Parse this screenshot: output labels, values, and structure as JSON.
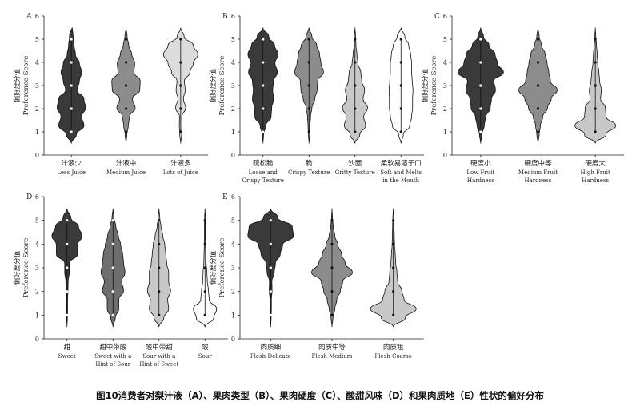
{
  "figure": {
    "caption": "图10消费者对梨汁液（A）、果肉类型（B）、果肉硬度（C）、酸甜风味（D）和果肉质地（E）性状的偏好分布"
  },
  "chart_data": [
    {
      "type": "violin",
      "panel_label": "A",
      "ylabel_cn": "偏好度分值",
      "ylabel_en": "Preference Score",
      "ylim": [
        0,
        6
      ],
      "yticks": [
        0,
        1,
        2,
        3,
        4,
        5,
        6
      ],
      "categories": [
        {
          "cn": "汁液少",
          "en": [
            "Less Juice"
          ],
          "color": "#3a3a3a",
          "widths": [
            0,
            0.22,
            0.55,
            0.45,
            0.62,
            0.55,
            0.25,
            0.35,
            0.45,
            0.35,
            0.18,
            0.12,
            0.08,
            0.04
          ],
          "points": [
            1,
            2,
            3,
            4,
            5
          ]
        },
        {
          "cn": "汁液中",
          "en": [
            "Medium Juice"
          ],
          "color": "#8c8c8c",
          "widths": [
            0,
            0.04,
            0.1,
            0.16,
            0.4,
            0.28,
            0.6,
            0.62,
            0.35,
            0.38,
            0.25,
            0.12,
            0.05,
            0
          ],
          "points": [
            1,
            2,
            3,
            4,
            5
          ]
        },
        {
          "cn": "汁液多",
          "en": [
            "Lots of Juice"
          ],
          "color": "#dcdcdc",
          "widths": [
            0,
            0.04,
            0.06,
            0.05,
            0.22,
            0.12,
            0.2,
            0.16,
            0.4,
            0.55,
            0.75,
            0.55,
            0.15,
            0
          ],
          "points": [
            1,
            2,
            3,
            4,
            5
          ]
        }
      ]
    },
    {
      "type": "violin",
      "panel_label": "B",
      "ylabel_cn": "偏好度分值",
      "ylabel_en": "Preference Score",
      "ylim": [
        0,
        6
      ],
      "yticks": [
        0,
        1,
        2,
        3,
        4,
        5,
        6
      ],
      "categories": [
        {
          "cn": "疏松脆",
          "en": [
            "Loose and",
            "Crispy Texture"
          ],
          "color": "#3a3a3a",
          "widths": [
            0,
            0.03,
            0.15,
            0.42,
            0.45,
            0.55,
            0.5,
            0.55,
            0.75,
            0.62,
            0.78,
            0.6,
            0.3,
            0
          ],
          "points": [
            1,
            2,
            3,
            4,
            5
          ]
        },
        {
          "cn": "脆",
          "en": [
            "Crispy Texture"
          ],
          "color": "#8c8c8c",
          "widths": [
            0,
            0.03,
            0.05,
            0.08,
            0.15,
            0.3,
            0.42,
            0.45,
            0.75,
            0.62,
            0.55,
            0.4,
            0.15,
            0
          ],
          "points": [
            1,
            2,
            3,
            4,
            5
          ]
        },
        {
          "cn": "沙面",
          "en": [
            "Gritty Texture"
          ],
          "color": "#c8c8c8",
          "widths": [
            0,
            0.25,
            0.55,
            0.45,
            0.65,
            0.42,
            0.5,
            0.35,
            0.3,
            0.15,
            0.1,
            0.05,
            0.03,
            0
          ],
          "points": [
            1,
            2,
            3,
            4,
            5
          ]
        },
        {
          "cn": "柔软易溶于口",
          "en": [
            "Soft and Melts",
            "in the Mouth"
          ],
          "color": "#ffffff",
          "widths": [
            0,
            0.12,
            0.45,
            0.55,
            0.6,
            0.6,
            0.62,
            0.58,
            0.55,
            0.55,
            0.5,
            0.4,
            0.2,
            0
          ],
          "points": [
            1,
            2,
            3,
            4,
            5
          ]
        }
      ]
    },
    {
      "type": "violin",
      "panel_label": "C",
      "ylabel_cn": "偏好度分值",
      "ylabel_en": "Preference Score",
      "ylim": [
        0,
        6
      ],
      "yticks": [
        0,
        1,
        2,
        3,
        4,
        5,
        6
      ],
      "categories": [
        {
          "cn": "硬度小",
          "en": [
            "Low Fruit",
            "Hardness"
          ],
          "color": "#3a3a3a",
          "widths": [
            0,
            0.05,
            0.15,
            0.22,
            0.4,
            0.45,
            0.62,
            0.55,
            0.95,
            0.7,
            0.6,
            0.35,
            0.12,
            0
          ],
          "points": [
            1,
            2,
            3,
            4,
            5
          ]
        },
        {
          "cn": "硬度中等",
          "en": [
            "Medium Fruit",
            "Hardness"
          ],
          "color": "#8c8c8c",
          "widths": [
            0,
            0.05,
            0.1,
            0.2,
            0.4,
            0.55,
            0.8,
            0.52,
            0.45,
            0.38,
            0.3,
            0.15,
            0.05,
            0
          ],
          "points": [
            1,
            2,
            3,
            4,
            5
          ]
        },
        {
          "cn": "硬度大",
          "en": [
            "High Fruit",
            "Hardness"
          ],
          "color": "#c8c8c8",
          "widths": [
            0,
            0.45,
            0.85,
            0.45,
            0.42,
            0.22,
            0.25,
            0.18,
            0.15,
            0.1,
            0.08,
            0.05,
            0.02,
            0
          ],
          "points": [
            1,
            2,
            3,
            4,
            5
          ]
        }
      ]
    },
    {
      "type": "violin",
      "panel_label": "D",
      "ylabel_cn": "偏好度分值",
      "ylabel_en": "Preference Score",
      "ylim": [
        0,
        6
      ],
      "yticks": [
        0,
        1,
        2,
        3,
        4,
        5,
        6
      ],
      "categories": [
        {
          "cn": "甜",
          "en": [
            "Sweet"
          ],
          "color": "#3a3a3a",
          "widths": [
            0,
            0.02,
            0.03,
            0.03,
            0.05,
            0.06,
            0.12,
            0.12,
            0.55,
            0.55,
            0.78,
            0.6,
            0.2,
            0
          ],
          "points": [
            1,
            2,
            3,
            4,
            5
          ]
        },
        {
          "cn": "甜中带酸",
          "en": [
            "Sweet with a",
            "Hint of Sour"
          ],
          "color": "#6e6e6e",
          "widths": [
            0,
            0.12,
            0.3,
            0.3,
            0.55,
            0.45,
            0.62,
            0.55,
            0.5,
            0.4,
            0.28,
            0.15,
            0.05,
            0
          ],
          "points": [
            1,
            2,
            3,
            4,
            5
          ]
        },
        {
          "cn": "酸中带甜",
          "en": [
            "Sour with a",
            "Hint of Sweet"
          ],
          "color": "#c8c8c8",
          "widths": [
            0,
            0.25,
            0.5,
            0.45,
            0.6,
            0.5,
            0.5,
            0.4,
            0.35,
            0.3,
            0.2,
            0.1,
            0.04,
            0
          ],
          "points": [
            1,
            2,
            3,
            4,
            5
          ]
        },
        {
          "cn": "酸",
          "en": [
            "Sour"
          ],
          "color": "#ffffff",
          "widths": [
            0,
            0.45,
            0.6,
            0.22,
            0.18,
            0.12,
            0.1,
            0.06,
            0.05,
            0.04,
            0.03,
            0.03,
            0.02,
            0
          ],
          "points": [
            1,
            2,
            3,
            4,
            5
          ]
        }
      ]
    },
    {
      "type": "violin",
      "panel_label": "E",
      "ylabel_cn": "偏好度分值",
      "ylabel_en": "Preference Score",
      "ylim": [
        0,
        6
      ],
      "yticks": [
        0,
        1,
        2,
        3,
        4,
        5,
        6
      ],
      "categories": [
        {
          "cn": "肉质细",
          "en": [
            "Flesh-Delicate"
          ],
          "color": "#3a3a3a",
          "widths": [
            0,
            0.02,
            0.03,
            0.03,
            0.06,
            0.05,
            0.15,
            0.2,
            0.4,
            0.5,
            0.95,
            0.9,
            0.3,
            0
          ],
          "points": [
            1,
            2,
            3,
            4,
            5
          ]
        },
        {
          "cn": "肉质中等",
          "en": [
            "Flesh-Medium"
          ],
          "color": "#8c8c8c",
          "widths": [
            0,
            0.04,
            0.12,
            0.2,
            0.35,
            0.45,
            0.85,
            0.55,
            0.4,
            0.25,
            0.12,
            0.05,
            0.02,
            0
          ],
          "points": [
            1,
            2,
            3,
            4,
            5
          ]
        },
        {
          "cn": "肉质粗",
          "en": [
            "Flesh-Coarse"
          ],
          "color": "#c8c8c8",
          "widths": [
            0,
            0.5,
            0.95,
            0.45,
            0.35,
            0.18,
            0.15,
            0.1,
            0.08,
            0.05,
            0.04,
            0.03,
            0.02,
            0
          ],
          "points": [
            1,
            2,
            3,
            4,
            5
          ]
        }
      ]
    }
  ]
}
